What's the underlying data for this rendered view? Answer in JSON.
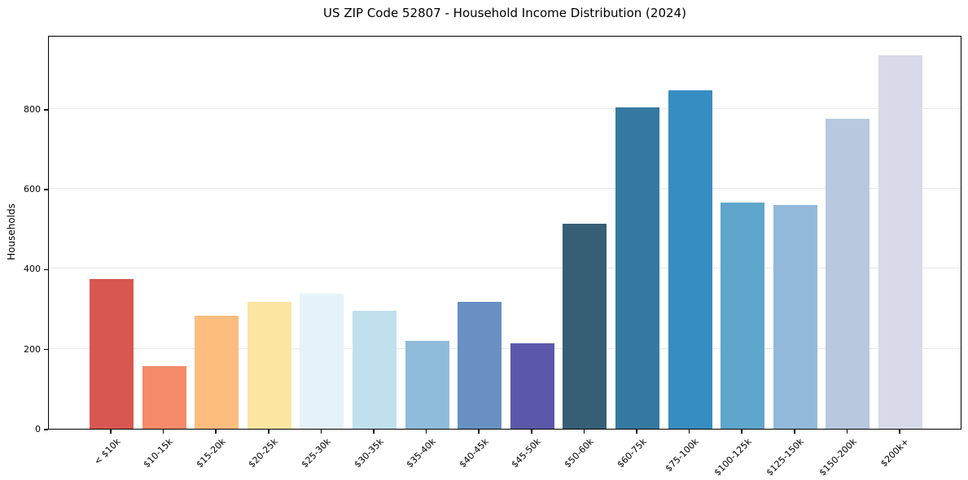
{
  "figure": {
    "title": "US ZIP Code 52807 - Household Income Distribution (2024)"
  },
  "chart_data": {
    "type": "bar",
    "title": "US ZIP Code 52807 - Household Income Distribution (2024)",
    "xlabel": "",
    "ylabel": "Households",
    "categories": [
      "< $10k",
      "$10-15k",
      "$15-20k",
      "$20-25k",
      "$25-30k",
      "$30-35k",
      "$35-40k",
      "$40-45k",
      "$45-50k",
      "$50-60k",
      "$60-75k",
      "$75-100k",
      "$100-125k",
      "$125-150k",
      "$150-200k",
      "$200k+"
    ],
    "values": [
      375,
      157,
      282,
      318,
      338,
      296,
      219,
      318,
      214,
      513,
      803,
      846,
      566,
      560,
      776,
      934
    ],
    "bar_colors": [
      "#d85750",
      "#f48a67",
      "#fcbd7e",
      "#fde5a2",
      "#e6f2f9",
      "#bfe0ec",
      "#8ebcda",
      "#6890c3",
      "#5b58ab",
      "#365f75",
      "#3579a2",
      "#368dc1",
      "#5ea6cb",
      "#92b8da",
      "#b8c8df",
      "#d8dae9"
    ],
    "yticks": [
      0,
      200,
      400,
      600,
      800
    ],
    "ylim": [
      0,
      985
    ],
    "grid": "horizontal-only",
    "grid_color": "#e8e8e8",
    "legend": "none",
    "background_color": "#ffffff",
    "spine_color": "#000000"
  }
}
